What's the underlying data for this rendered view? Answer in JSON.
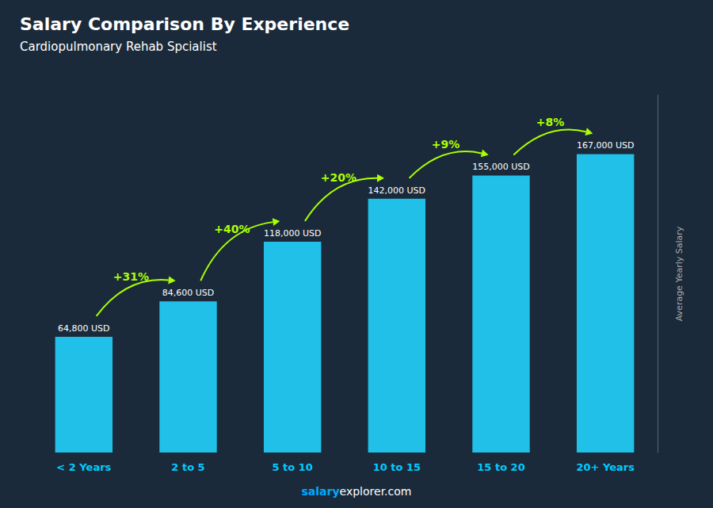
{
  "chart_data": {
    "type": "bar",
    "title": "Salary Comparison By Experience",
    "subtitle": "Cardiopulmonary Rehab Spcialist",
    "categories": [
      "< 2 Years",
      "2 to 5",
      "5 to 10",
      "10 to 15",
      "15 to 20",
      "20+ Years"
    ],
    "values": [
      64800,
      84600,
      118000,
      142000,
      155000,
      167000
    ],
    "value_labels": [
      "64,800 USD",
      "84,600 USD",
      "118,000 USD",
      "142,000 USD",
      "155,000 USD",
      "167,000 USD"
    ],
    "data_labels": true,
    "color": "#20c0e8",
    "ylim": [
      0,
      200000
    ],
    "ylabel": "Average Yearly Salary",
    "tick_labels": "x",
    "grid": false,
    "annotations": [
      "+31%",
      "+40%",
      "+20%",
      "+9%",
      "+8%"
    ],
    "footer": [
      "salary",
      "explorer.com"
    ]
  }
}
